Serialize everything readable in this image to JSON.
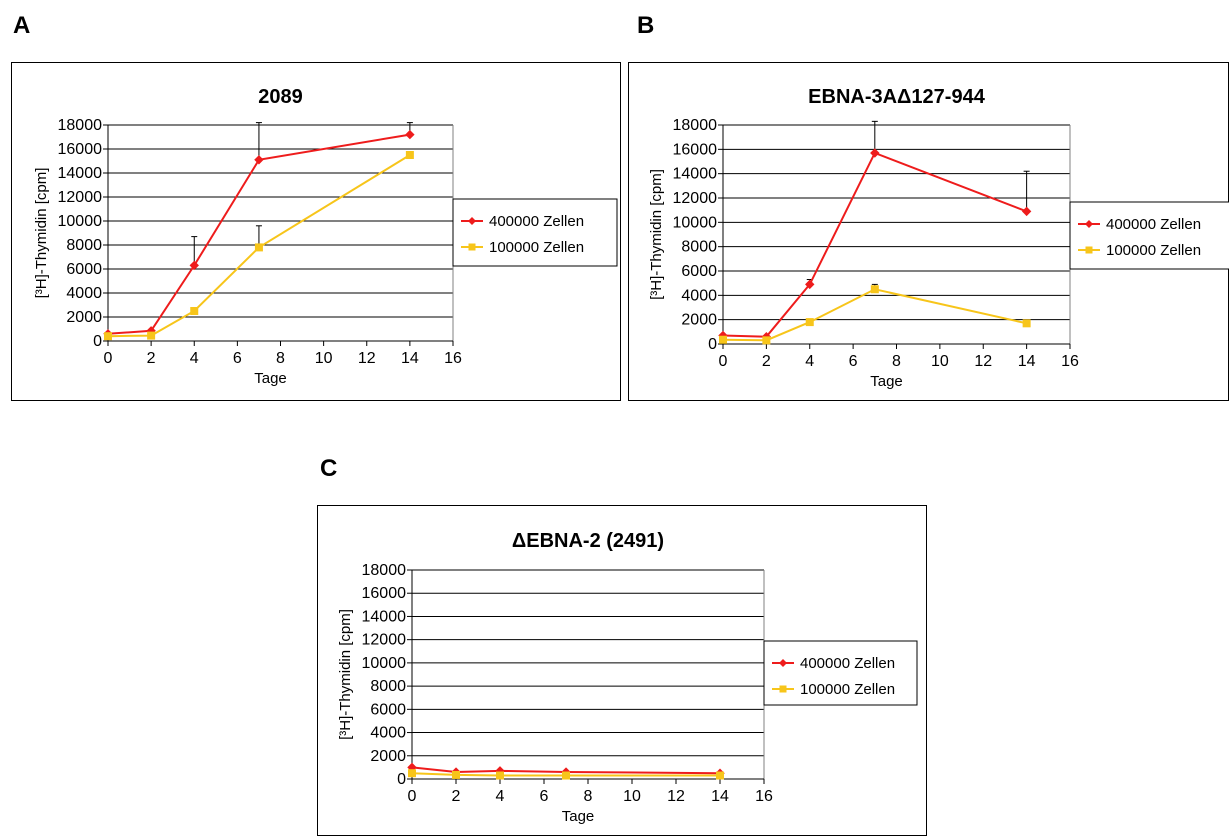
{
  "figure": {
    "panels": [
      {
        "letter": "A"
      },
      {
        "letter": "B"
      },
      {
        "letter": "C"
      }
    ]
  },
  "colors": {
    "series_400000": "#ee1c1c",
    "series_100000": "#f7c51a",
    "gridline": "#000000",
    "errorbar": "#000000"
  },
  "chart_data": [
    {
      "type": "line",
      "title": "2089",
      "xlabel": "Tage",
      "ylabel": "[³H]-Thymidin [cpm]",
      "xlim": [
        0,
        16
      ],
      "ylim": [
        0,
        18000
      ],
      "xticks": [
        "0",
        "2",
        "4",
        "6",
        "8",
        "10",
        "12",
        "14",
        "16"
      ],
      "yticks": [
        "0",
        "2000",
        "4000",
        "6000",
        "8000",
        "10000",
        "12000",
        "14000",
        "16000",
        "18000"
      ],
      "grid": "horizontal",
      "legend": "right",
      "series": [
        {
          "name": "400000 Zellen",
          "marker": "diamond",
          "x": [
            0,
            2,
            4,
            7,
            14
          ],
          "y": [
            600,
            850,
            6300,
            15100,
            17200
          ],
          "error_up": [
            null,
            null,
            2400,
            3100,
            1000
          ]
        },
        {
          "name": "100000 Zellen",
          "marker": "square",
          "x": [
            0,
            2,
            4,
            7,
            14
          ],
          "y": [
            400,
            450,
            2500,
            7800,
            15500
          ],
          "error_up": [
            null,
            null,
            null,
            1800,
            null
          ]
        }
      ]
    },
    {
      "type": "line",
      "title": "EBNA-3AΔ127-944",
      "xlabel": "Tage",
      "ylabel": "[³H]-Thymidin [cpm]",
      "xlim": [
        0,
        16
      ],
      "ylim": [
        0,
        18000
      ],
      "xticks": [
        "0",
        "2",
        "4",
        "6",
        "8",
        "10",
        "12",
        "14",
        "16"
      ],
      "yticks": [
        "0",
        "2000",
        "4000",
        "6000",
        "8000",
        "10000",
        "12000",
        "14000",
        "16000",
        "18000"
      ],
      "grid": "horizontal",
      "legend": "right",
      "series": [
        {
          "name": "400000 Zellen",
          "marker": "diamond",
          "x": [
            0,
            2,
            4,
            7,
            14
          ],
          "y": [
            700,
            600,
            4900,
            15700,
            10900
          ],
          "error_up": [
            null,
            null,
            400,
            2600,
            3300
          ]
        },
        {
          "name": "100000 Zellen",
          "marker": "square",
          "x": [
            0,
            2,
            4,
            7,
            14
          ],
          "y": [
            350,
            300,
            1800,
            4500,
            1700
          ],
          "error_up": [
            null,
            null,
            200,
            400,
            200
          ]
        }
      ]
    },
    {
      "type": "line",
      "title": "ΔEBNA-2 (2491)",
      "xlabel": "Tage",
      "ylabel": "[³H]-Thymidin [cpm]",
      "xlim": [
        0,
        16
      ],
      "ylim": [
        0,
        18000
      ],
      "xticks": [
        "0",
        "2",
        "4",
        "6",
        "8",
        "10",
        "12",
        "14",
        "16"
      ],
      "yticks": [
        "0",
        "2000",
        "4000",
        "6000",
        "8000",
        "10000",
        "12000",
        "14000",
        "16000",
        "18000"
      ],
      "grid": "horizontal",
      "legend": "right",
      "series": [
        {
          "name": "400000 Zellen",
          "marker": "diamond",
          "x": [
            0,
            2,
            4,
            7,
            14
          ],
          "y": [
            1000,
            600,
            700,
            600,
            500
          ],
          "error_up": [
            null,
            null,
            null,
            null,
            null
          ]
        },
        {
          "name": "100000 Zellen",
          "marker": "square",
          "x": [
            0,
            2,
            4,
            7,
            14
          ],
          "y": [
            500,
            350,
            300,
            300,
            300
          ],
          "error_up": [
            null,
            null,
            null,
            null,
            null
          ]
        }
      ]
    }
  ]
}
